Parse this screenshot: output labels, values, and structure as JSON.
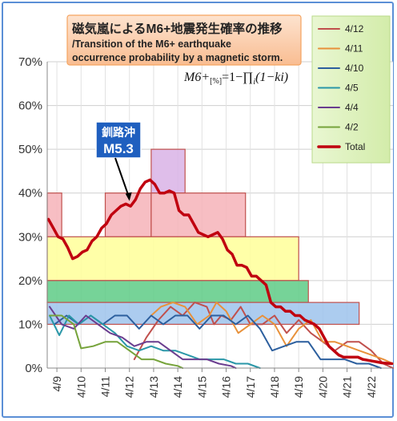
{
  "chart_data": {
    "type": "line",
    "title": "磁気嵐によるM6+地震発生確率の推移",
    "subtitle": "/Transition of the M6+ earthquake occurrence probability by a magnetic storm.",
    "formula": {
      "lhs": "M6+",
      "unit": "[%]",
      "rhs": "=1−∏",
      "sub": "i",
      "tail": "(1−ki)"
    },
    "ylim": [
      0,
      70
    ],
    "yticks": [
      0,
      10,
      20,
      30,
      40,
      50,
      60,
      70
    ],
    "ytick_labels": [
      "0%",
      "10%",
      "20%",
      "30%",
      "40%",
      "50%",
      "60%",
      "70%"
    ],
    "xlim": [
      8.6,
      22.9
    ],
    "xticks": [
      9,
      10,
      11,
      12,
      13,
      14,
      15,
      16,
      17,
      18,
      19,
      20,
      21,
      22
    ],
    "xtick_labels": [
      "4/9",
      "4/10",
      "4/11",
      "4/12",
      "4/13",
      "4/14",
      "4/15",
      "4/16",
      "4/17",
      "4/18",
      "4/19",
      "4/20",
      "4/21",
      "4/22"
    ],
    "legend_position": "top-right",
    "legend": [
      {
        "label": "4/12",
        "color": "#c0504d",
        "width": 2
      },
      {
        "label": "4/11",
        "color": "#e8913a",
        "width": 2
      },
      {
        "label": "4/10",
        "color": "#2c5f9e",
        "width": 2
      },
      {
        "label": "4/5",
        "color": "#2a97a8",
        "width": 2
      },
      {
        "label": "4/4",
        "color": "#6a3d8f",
        "width": 2
      },
      {
        "label": "4/2",
        "color": "#76a33b",
        "width": 2
      },
      {
        "label": "Total",
        "color": "#c0000f",
        "width": 3.5
      }
    ],
    "bands": [
      {
        "x0": 8.6,
        "x1": 9.2,
        "y0": 30,
        "y1": 40,
        "fill": "#f6b3b8",
        "stroke": "#c0504d"
      },
      {
        "x0": 11.0,
        "x1": 12.9,
        "y0": 30,
        "y1": 40,
        "fill": "#f6b3b8",
        "stroke": "#c0504d"
      },
      {
        "x0": 12.9,
        "x1": 14.3,
        "y0": 40,
        "y1": 50,
        "fill": "#d9b3e6",
        "stroke": "#c0504d"
      },
      {
        "x0": 12.9,
        "x1": 16.8,
        "y0": 30,
        "y1": 40,
        "fill": "#f6b3b8",
        "stroke": "#c0504d"
      },
      {
        "x0": 8.6,
        "x1": 19.0,
        "y0": 20,
        "y1": 30,
        "fill": "#ffff99",
        "stroke": "#c0504d"
      },
      {
        "x0": 8.6,
        "x1": 19.4,
        "y0": 15,
        "y1": 20,
        "fill": "#5ecb86",
        "stroke": "#c0504d"
      },
      {
        "x0": 8.6,
        "x1": 21.5,
        "y0": 10,
        "y1": 15,
        "fill": "#9ec3ec",
        "stroke": "#c0504d"
      }
    ],
    "series": [
      {
        "name": "4/12",
        "color": "#c0504d",
        "width": 2,
        "x": [
          12.2,
          12.7,
          13.2,
          13.7,
          14.2,
          14.7,
          15.2,
          15.5,
          15.8,
          16.2,
          16.6,
          17.0,
          17.5,
          18.0,
          18.5,
          19.0,
          19.5,
          20.0,
          20.5,
          21.0,
          21.5,
          22.0,
          22.5,
          22.9
        ],
        "y": [
          2,
          7,
          11,
          14,
          12,
          15,
          14,
          10,
          12,
          11,
          14,
          10,
          10,
          12,
          8,
          11,
          8,
          6,
          4,
          6,
          6,
          4,
          1,
          0
        ]
      },
      {
        "name": "4/11",
        "color": "#e8913a",
        "width": 2,
        "x": [
          12.9,
          13.3,
          13.8,
          14.3,
          14.8,
          15.3,
          15.6,
          16.0,
          16.5,
          17.0,
          17.5,
          18.0,
          18.5,
          19.0,
          19.5,
          20.0,
          20.5,
          21.0,
          21.5,
          22.0,
          22.5,
          22.9
        ],
        "y": [
          12,
          14,
          15,
          14,
          10,
          12,
          15,
          13,
          8,
          10,
          12,
          10,
          5,
          9,
          11,
          6,
          6,
          5,
          4,
          3,
          2,
          1
        ]
      },
      {
        "name": "4/10",
        "color": "#2c5f9e",
        "width": 2,
        "x": [
          8.9,
          9.4,
          9.9,
          10.4,
          10.9,
          11.4,
          11.9,
          12.4,
          12.9,
          13.4,
          13.9,
          14.4,
          14.9,
          15.4,
          15.9,
          16.4,
          16.9,
          17.4,
          17.9,
          18.4,
          18.9,
          19.4,
          19.9,
          20.4,
          20.9,
          21.4,
          21.9,
          22.4
        ],
        "y": [
          10,
          12,
          10,
          12,
          10,
          12,
          12,
          9,
          12,
          10,
          12,
          12,
          9,
          12,
          12,
          10,
          12,
          9,
          4,
          5,
          6,
          6,
          2,
          2,
          2,
          1,
          1,
          0
        ]
      },
      {
        "name": "4/5",
        "color": "#2a97a8",
        "width": 2,
        "x": [
          8.7,
          9.1,
          9.5,
          9.9,
          10.4,
          10.9,
          11.4,
          11.9,
          12.4,
          12.9,
          13.4,
          13.9,
          14.4,
          14.9,
          15.4,
          15.9,
          16.4,
          16.9,
          17.4
        ],
        "y": [
          12,
          7.5,
          12,
          10,
          12,
          10,
          8,
          5,
          4,
          5,
          4,
          4,
          3,
          2,
          2,
          2,
          1,
          1,
          0
        ]
      },
      {
        "name": "4/4",
        "color": "#6a3d8f",
        "width": 2,
        "x": [
          8.7,
          9.2,
          9.7,
          10.2,
          10.7,
          11.2,
          11.7,
          12.2,
          12.7,
          13.2,
          13.7,
          14.2,
          14.7,
          15.2,
          15.7,
          16.2,
          16.4
        ],
        "y": [
          14,
          10,
          9,
          12,
          10,
          8,
          7,
          5,
          6,
          6,
          4,
          2,
          2,
          2,
          1,
          0.5,
          0
        ]
      },
      {
        "name": "4/2",
        "color": "#76a33b",
        "width": 2,
        "x": [
          8.7,
          9.2,
          9.7,
          10.0,
          10.5,
          11.0,
          11.5,
          12.0,
          12.5,
          13.0,
          13.5,
          14.0,
          14.2
        ],
        "y": [
          12,
          12,
          10,
          4.5,
          5,
          6,
          6,
          4,
          2,
          2,
          1,
          0.5,
          0
        ]
      },
      {
        "name": "Total",
        "color": "#c0000f",
        "width": 3.5,
        "x": [
          8.65,
          8.85,
          9.05,
          9.25,
          9.45,
          9.65,
          9.85,
          10.05,
          10.25,
          10.45,
          10.65,
          10.85,
          11.05,
          11.25,
          11.45,
          11.65,
          11.85,
          12.05,
          12.25,
          12.45,
          12.65,
          12.85,
          13.05,
          13.25,
          13.45,
          13.65,
          13.85,
          14.05,
          14.25,
          14.45,
          14.65,
          14.85,
          15.05,
          15.25,
          15.45,
          15.65,
          15.85,
          16.05,
          16.25,
          16.45,
          16.65,
          16.85,
          17.05,
          17.25,
          17.45,
          17.65,
          17.85,
          18.05,
          18.25,
          18.45,
          18.65,
          18.85,
          19.05,
          19.25,
          19.45,
          19.65,
          19.85,
          20.05,
          20.25,
          20.45,
          20.65,
          20.85,
          21.05,
          21.25,
          21.45,
          21.65,
          21.85,
          22.05,
          22.25,
          22.45,
          22.65,
          22.85
        ],
        "y": [
          34,
          32,
          30,
          29.5,
          27.5,
          25,
          25.5,
          26.5,
          27,
          29,
          30,
          32,
          33,
          35,
          36,
          37,
          37.5,
          37,
          38.5,
          41,
          42.5,
          43,
          42,
          40,
          40,
          40.5,
          40,
          36,
          35,
          35,
          33,
          31,
          30.5,
          30,
          30.5,
          31,
          29.5,
          27,
          26,
          23.5,
          23.5,
          23,
          21,
          21,
          20,
          19,
          15,
          14,
          14,
          13,
          13,
          12,
          12,
          11,
          10.5,
          10,
          9,
          7,
          5,
          4,
          3,
          2.5,
          2.5,
          2.5,
          2.5,
          2,
          1.8,
          1.6,
          1.4,
          1.2,
          1.1,
          1.0
        ]
      }
    ],
    "annotation": {
      "line1": "釧路沖",
      "line2": "M5.3",
      "x": 12.0,
      "y": 38
    }
  }
}
